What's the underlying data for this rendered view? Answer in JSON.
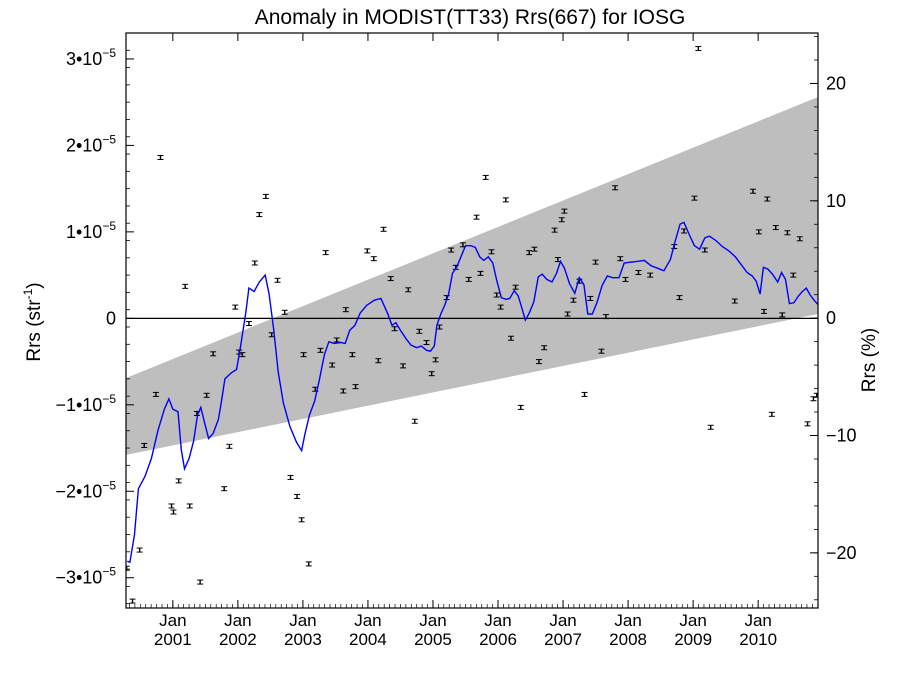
{
  "chart_data": {
    "type": "scatter",
    "title": "Anomaly in MODIST(TT33) Rrs(667) for IOSG",
    "ylabel_left_base": "Rrs (str",
    "ylabel_left_sup": "-1",
    "ylabel_left_end": ")",
    "ylabel_right": "Rrs (%)",
    "xlim": [
      2000.28,
      2010.92
    ],
    "ylim": [
      -3.35e-05,
      3.3e-05
    ],
    "y2lim": [
      -24.7,
      24.3
    ],
    "left_ticks": [
      {
        "value": -3e-05,
        "mant": "−3•10",
        "exp": "−5"
      },
      {
        "value": -2e-05,
        "mant": "−2•10",
        "exp": "−5"
      },
      {
        "value": -1e-05,
        "mant": "−1•10",
        "exp": "−5"
      },
      {
        "value": 0,
        "mant": "0",
        "exp": ""
      },
      {
        "value": 1e-05,
        "mant": "1•10",
        "exp": "−5"
      },
      {
        "value": 2e-05,
        "mant": "2•10",
        "exp": "−5"
      },
      {
        "value": 3e-05,
        "mant": "3•10",
        "exp": "−5"
      }
    ],
    "right_ticks": [
      {
        "value": -20,
        "label": "−20"
      },
      {
        "value": -10,
        "label": "−10"
      },
      {
        "value": 0,
        "label": "0"
      },
      {
        "value": 10,
        "label": "10"
      },
      {
        "value": 20,
        "label": "20"
      }
    ],
    "x_ticks": [
      {
        "value": 2001.0,
        "month": "Jan",
        "year": "2001"
      },
      {
        "value": 2002.0,
        "month": "Jan",
        "year": "2002"
      },
      {
        "value": 2003.0,
        "month": "Jan",
        "year": "2003"
      },
      {
        "value": 2004.0,
        "month": "Jan",
        "year": "2004"
      },
      {
        "value": 2005.0,
        "month": "Jan",
        "year": "2005"
      },
      {
        "value": 2006.0,
        "month": "Jan",
        "year": "2006"
      },
      {
        "value": 2007.0,
        "month": "Jan",
        "year": "2007"
      },
      {
        "value": 2008.0,
        "month": "Jan",
        "year": "2008"
      },
      {
        "value": 2009.0,
        "month": "Jan",
        "year": "2009"
      },
      {
        "value": 2010.0,
        "month": "Jan",
        "year": "2010"
      }
    ],
    "band": {
      "x0": 2000.28,
      "x1": 2010.92,
      "upper": [
        -6.9e-06,
        2.56e-05
      ],
      "lower": [
        -1.58e-05,
        5e-07
      ]
    },
    "zero_line": 0,
    "colors": {
      "band": "#bebebe",
      "line": "#0000ff",
      "points": "#000000",
      "axis": "#000000"
    },
    "points": [
      [
        2000.29,
        -2.89e-05
      ],
      [
        2000.38,
        -3.27e-05
      ],
      [
        2000.49,
        -2.68e-05
      ],
      [
        2000.56,
        -1.47e-05
      ],
      [
        2000.74,
        -8.8e-06
      ],
      [
        2000.81,
        1.86e-05
      ],
      [
        2000.98,
        -2.17e-05
      ],
      [
        2001.01,
        -2.24e-05
      ],
      [
        2001.09,
        -1.88e-05
      ],
      [
        2001.19,
        3.7e-06
      ],
      [
        2001.26,
        -2.17e-05
      ],
      [
        2001.37,
        -1.1e-05
      ],
      [
        2001.42,
        -3.05e-05
      ],
      [
        2001.52,
        -8.9e-06
      ],
      [
        2001.62,
        -4.1e-06
      ],
      [
        2001.79,
        -1.97e-05
      ],
      [
        2001.87,
        -1.48e-05
      ],
      [
        2001.96,
        1.3e-06
      ],
      [
        2002.02,
        -3.9e-06
      ],
      [
        2002.07,
        -4.2e-06
      ],
      [
        2002.17,
        -6e-07
      ],
      [
        2002.26,
        6.4e-06
      ],
      [
        2002.33,
        1.2e-05
      ],
      [
        2002.43,
        1.41e-05
      ],
      [
        2002.52,
        -1.9e-06
      ],
      [
        2002.61,
        4.4e-06
      ],
      [
        2002.72,
        7e-07
      ],
      [
        2002.81,
        -1.84e-05
      ],
      [
        2002.91,
        -2.06e-05
      ],
      [
        2002.98,
        -2.33e-05
      ],
      [
        2003.01,
        -4.2e-06
      ],
      [
        2003.09,
        -2.84e-05
      ],
      [
        2003.19,
        -8.2e-06
      ],
      [
        2003.27,
        -3.7e-06
      ],
      [
        2003.35,
        7.6e-06
      ],
      [
        2003.45,
        -5.4e-06
      ],
      [
        2003.52,
        -2.5e-06
      ],
      [
        2003.62,
        -8.4e-06
      ],
      [
        2003.66,
        1e-06
      ],
      [
        2003.81,
        -7.9e-06
      ],
      [
        2003.76,
        -4.2e-06
      ],
      [
        2003.99,
        7.8e-06
      ],
      [
        2004.09,
        6.9e-06
      ],
      [
        2004.16,
        -4.9e-06
      ],
      [
        2004.24,
        1.03e-05
      ],
      [
        2004.35,
        4.6e-06
      ],
      [
        2004.41,
        -1.2e-06
      ],
      [
        2004.54,
        -5.5e-06
      ],
      [
        2004.62,
        3.3e-06
      ],
      [
        2004.72,
        -1.19e-05
      ],
      [
        2004.79,
        -1.5e-06
      ],
      [
        2004.9,
        -2.8e-06
      ],
      [
        2004.98,
        -6.4e-06
      ],
      [
        2005.04,
        -4.8e-06
      ],
      [
        2005.1,
        -1e-06
      ],
      [
        2005.21,
        2.4e-06
      ],
      [
        2005.28,
        7.9e-06
      ],
      [
        2005.35,
        5.9e-06
      ],
      [
        2005.46,
        8.5e-06
      ],
      [
        2005.55,
        4.5e-06
      ],
      [
        2005.67,
        1.17e-05
      ],
      [
        2005.73,
        5.2e-06
      ],
      [
        2005.81,
        1.63e-05
      ],
      [
        2005.9,
        7.7e-06
      ],
      [
        2005.98,
        2.7e-06
      ],
      [
        2006.04,
        1.3e-06
      ],
      [
        2006.12,
        1.37e-05
      ],
      [
        2006.2,
        -2.3e-06
      ],
      [
        2006.27,
        3.6e-06
      ],
      [
        2006.35,
        -1.03e-05
      ],
      [
        2006.48,
        7.6e-06
      ],
      [
        2006.56,
        8e-06
      ],
      [
        2006.63,
        -5e-06
      ],
      [
        2006.71,
        -3.4e-06
      ],
      [
        2006.87,
        1.02e-05
      ],
      [
        2006.92,
        6.8e-06
      ],
      [
        2006.98,
        1.14e-05
      ],
      [
        2007.02,
        1.24e-05
      ],
      [
        2007.07,
        5e-07
      ],
      [
        2007.16,
        2.1e-06
      ],
      [
        2007.25,
        4.3e-06
      ],
      [
        2007.33,
        -8.8e-06
      ],
      [
        2007.42,
        2.3e-06
      ],
      [
        2007.5,
        6.5e-06
      ],
      [
        2007.59,
        -3.8e-06
      ],
      [
        2007.66,
        2e-07
      ],
      [
        2007.8,
        1.51e-05
      ],
      [
        2007.88,
        6.9e-06
      ],
      [
        2007.96,
        4.5e-06
      ],
      [
        2008.16,
        5.3e-06
      ],
      [
        2008.34,
        5e-06
      ],
      [
        2008.71,
        8.3e-06
      ],
      [
        2008.79,
        2.4e-06
      ],
      [
        2008.86,
        1.01e-05
      ],
      [
        2009.02,
        1.39e-05
      ],
      [
        2009.08,
        3.12e-05
      ],
      [
        2009.18,
        7.9e-06
      ],
      [
        2009.27,
        -1.26e-05
      ],
      [
        2009.64,
        2e-06
      ],
      [
        2009.92,
        1.47e-05
      ],
      [
        2010.01,
        1e-05
      ],
      [
        2010.09,
        8e-07
      ],
      [
        2010.14,
        1.38e-05
      ],
      [
        2010.21,
        -1.11e-05
      ],
      [
        2010.27,
        1.05e-05
      ],
      [
        2010.37,
        4e-07
      ],
      [
        2010.45,
        9.9e-06
      ],
      [
        2010.54,
        5e-06
      ],
      [
        2010.64,
        9.2e-06
      ],
      [
        2010.76,
        -1.22e-05
      ],
      [
        2010.85,
        -9.3e-06
      ],
      [
        2010.9,
        -8.9e-06
      ]
    ],
    "line": [
      [
        2000.3,
        -2.81e-05
      ],
      [
        2000.34,
        -2.82e-05
      ],
      [
        2000.41,
        -2.5e-05
      ],
      [
        2000.47,
        -1.97e-05
      ],
      [
        2000.57,
        -1.83e-05
      ],
      [
        2000.67,
        -1.62e-05
      ],
      [
        2000.77,
        -1.3e-05
      ],
      [
        2000.87,
        -1.05e-05
      ],
      [
        2000.94,
        -9.3e-06
      ],
      [
        2001.0,
        -1.05e-05
      ],
      [
        2001.08,
        -1.08e-05
      ],
      [
        2001.13,
        -1.52e-05
      ],
      [
        2001.18,
        -1.74e-05
      ],
      [
        2001.25,
        -1.62e-05
      ],
      [
        2001.32,
        -1.42e-05
      ],
      [
        2001.38,
        -1.12e-05
      ],
      [
        2001.43,
        -1.03e-05
      ],
      [
        2001.5,
        -1.24e-05
      ],
      [
        2001.55,
        -1.39e-05
      ],
      [
        2001.62,
        -1.33e-05
      ],
      [
        2001.7,
        -1.17e-05
      ],
      [
        2001.75,
        -9.5e-06
      ],
      [
        2001.8,
        -7e-06
      ],
      [
        2001.9,
        -6.3e-06
      ],
      [
        2001.98,
        -5.9e-06
      ],
      [
        2002.04,
        -3.3e-06
      ],
      [
        2002.12,
        6e-07
      ],
      [
        2002.17,
        3.5e-06
      ],
      [
        2002.25,
        3.1e-06
      ],
      [
        2002.33,
        4.2e-06
      ],
      [
        2002.42,
        5e-06
      ],
      [
        2002.48,
        2.8e-06
      ],
      [
        2002.55,
        -1.2e-06
      ],
      [
        2002.62,
        -6.2e-06
      ],
      [
        2002.7,
        -9.8e-06
      ],
      [
        2002.8,
        -1.25e-05
      ],
      [
        2002.9,
        -1.43e-05
      ],
      [
        2002.98,
        -1.53e-05
      ],
      [
        2003.03,
        -1.34e-05
      ],
      [
        2003.1,
        -1.12e-05
      ],
      [
        2003.18,
        -9.6e-06
      ],
      [
        2003.25,
        -7.2e-06
      ],
      [
        2003.33,
        -4.2e-06
      ],
      [
        2003.4,
        -2.7e-06
      ],
      [
        2003.48,
        -2.9e-06
      ],
      [
        2003.58,
        -2.8e-06
      ],
      [
        2003.65,
        -2.9e-06
      ],
      [
        2003.72,
        -1.4e-06
      ],
      [
        2003.8,
        -8e-07
      ],
      [
        2003.88,
        6e-07
      ],
      [
        2003.98,
        1.5e-06
      ],
      [
        2004.1,
        2.1e-06
      ],
      [
        2004.2,
        2.3e-06
      ],
      [
        2004.3,
        6e-07
      ],
      [
        2004.37,
        -8e-07
      ],
      [
        2004.43,
        -5e-07
      ],
      [
        2004.5,
        -1.4e-06
      ],
      [
        2004.58,
        -2.3e-06
      ],
      [
        2004.66,
        -3.1e-06
      ],
      [
        2004.75,
        -3.4e-06
      ],
      [
        2004.82,
        -3.2e-06
      ],
      [
        2004.9,
        -3.7e-06
      ],
      [
        2004.96,
        -3.8e-06
      ],
      [
        2005.02,
        -3.2e-06
      ],
      [
        2005.06,
        -8e-07
      ],
      [
        2005.12,
        5e-07
      ],
      [
        2005.18,
        1.5e-06
      ],
      [
        2005.24,
        2.8e-06
      ],
      [
        2005.3,
        5.2e-06
      ],
      [
        2005.37,
        6e-06
      ],
      [
        2005.43,
        7.1e-06
      ],
      [
        2005.5,
        8.4e-06
      ],
      [
        2005.58,
        8.4e-06
      ],
      [
        2005.65,
        8.2e-06
      ],
      [
        2005.72,
        7.1e-06
      ],
      [
        2005.78,
        6.7e-06
      ],
      [
        2005.85,
        7.1e-06
      ],
      [
        2005.92,
        6.4e-06
      ],
      [
        2005.98,
        4.4e-06
      ],
      [
        2006.05,
        2.4e-06
      ],
      [
        2006.12,
        2.2e-06
      ],
      [
        2006.18,
        2.3e-06
      ],
      [
        2006.25,
        3.2e-06
      ],
      [
        2006.31,
        2.6e-06
      ],
      [
        2006.37,
        1.1e-06
      ],
      [
        2006.42,
        -2e-07
      ],
      [
        2006.48,
        6e-07
      ],
      [
        2006.55,
        1.9e-06
      ],
      [
        2006.62,
        4.8e-06
      ],
      [
        2006.68,
        5.1e-06
      ],
      [
        2006.75,
        4.5e-06
      ],
      [
        2006.83,
        4.2e-06
      ],
      [
        2006.9,
        5.2e-06
      ],
      [
        2006.96,
        6.6e-06
      ],
      [
        2007.02,
        5.8e-06
      ],
      [
        2007.1,
        4e-06
      ],
      [
        2007.18,
        2.9e-06
      ],
      [
        2007.25,
        4.7e-06
      ],
      [
        2007.32,
        3.9e-06
      ],
      [
        2007.38,
        5e-07
      ],
      [
        2007.45,
        5e-07
      ],
      [
        2007.52,
        1.8e-06
      ],
      [
        2007.6,
        3.8e-06
      ],
      [
        2007.68,
        4.9e-06
      ],
      [
        2007.76,
        4.7e-06
      ],
      [
        2007.86,
        4.7e-06
      ],
      [
        2007.94,
        6.4e-06
      ],
      [
        2008.05,
        6.5e-06
      ],
      [
        2008.15,
        6.6e-06
      ],
      [
        2008.25,
        6.7e-06
      ],
      [
        2008.35,
        6.1e-06
      ],
      [
        2008.45,
        5.8e-06
      ],
      [
        2008.55,
        5.5e-06
      ],
      [
        2008.65,
        6.8e-06
      ],
      [
        2008.72,
        8.8e-06
      ],
      [
        2008.8,
        1.09e-05
      ],
      [
        2008.86,
        1.11e-05
      ],
      [
        2008.94,
        9.7e-06
      ],
      [
        2009.02,
        8.4e-06
      ],
      [
        2009.1,
        8e-06
      ],
      [
        2009.18,
        9.3e-06
      ],
      [
        2009.25,
        9.5e-06
      ],
      [
        2009.35,
        9e-06
      ],
      [
        2009.45,
        8.3e-06
      ],
      [
        2009.55,
        7.8e-06
      ],
      [
        2009.65,
        7.1e-06
      ],
      [
        2009.75,
        6.1e-06
      ],
      [
        2009.83,
        5.3e-06
      ],
      [
        2009.91,
        4.9e-06
      ],
      [
        2009.97,
        4.3e-06
      ],
      [
        2010.03,
        2.8e-06
      ],
      [
        2010.08,
        5.9e-06
      ],
      [
        2010.15,
        5.7e-06
      ],
      [
        2010.22,
        5.1e-06
      ],
      [
        2010.3,
        4.2e-06
      ],
      [
        2010.36,
        5.3e-06
      ],
      [
        2010.42,
        4.5e-06
      ],
      [
        2010.48,
        1.7e-06
      ],
      [
        2010.55,
        1.8e-06
      ],
      [
        2010.62,
        2.6e-06
      ],
      [
        2010.68,
        3.1e-06
      ],
      [
        2010.74,
        3.5e-06
      ],
      [
        2010.8,
        2.7e-06
      ],
      [
        2010.86,
        2.1e-06
      ],
      [
        2010.92,
        1.6e-06
      ]
    ]
  }
}
